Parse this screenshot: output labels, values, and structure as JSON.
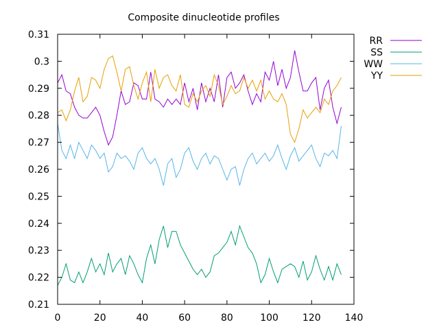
{
  "chart_data": {
    "type": "line",
    "title": "Composite dinucleotide profiles",
    "xlabel": "",
    "ylabel": "",
    "xlim": [
      0,
      140
    ],
    "ylim": [
      0.21,
      0.31
    ],
    "x_ticks": [
      "0",
      "20",
      "40",
      "60",
      "80",
      "100",
      "120",
      "140"
    ],
    "y_ticks": [
      "0.21",
      "0.22",
      "0.23",
      "0.24",
      "0.25",
      "0.26",
      "0.27",
      "0.28",
      "0.29",
      "0.3",
      "0.31"
    ],
    "grid": false,
    "legend_position": "top-right, outside plot",
    "series": [
      {
        "name": "RR",
        "color": "#9400d3",
        "points": [
          [
            0,
            0.292
          ],
          [
            2,
            0.295
          ],
          [
            4,
            0.289
          ],
          [
            6,
            0.288
          ],
          [
            8,
            0.283
          ],
          [
            10,
            0.28
          ],
          [
            12,
            0.279
          ],
          [
            14,
            0.279
          ],
          [
            16,
            0.281
          ],
          [
            18,
            0.283
          ],
          [
            20,
            0.28
          ],
          [
            22,
            0.274
          ],
          [
            24,
            0.269
          ],
          [
            26,
            0.272
          ],
          [
            28,
            0.28
          ],
          [
            30,
            0.289
          ],
          [
            32,
            0.284
          ],
          [
            34,
            0.285
          ],
          [
            36,
            0.292
          ],
          [
            38,
            0.291
          ],
          [
            40,
            0.286
          ],
          [
            42,
            0.286
          ],
          [
            44,
            0.296
          ],
          [
            46,
            0.286
          ],
          [
            48,
            0.285
          ],
          [
            50,
            0.283
          ],
          [
            52,
            0.286
          ],
          [
            54,
            0.284
          ],
          [
            56,
            0.286
          ],
          [
            58,
            0.284
          ],
          [
            60,
            0.292
          ],
          [
            62,
            0.285
          ],
          [
            64,
            0.29
          ],
          [
            66,
            0.282
          ],
          [
            68,
            0.292
          ],
          [
            70,
            0.285
          ],
          [
            72,
            0.29
          ],
          [
            74,
            0.285
          ],
          [
            76,
            0.295
          ],
          [
            78,
            0.283
          ],
          [
            80,
            0.294
          ],
          [
            82,
            0.296
          ],
          [
            84,
            0.29
          ],
          [
            86,
            0.292
          ],
          [
            88,
            0.295
          ],
          [
            90,
            0.289
          ],
          [
            92,
            0.284
          ],
          [
            94,
            0.288
          ],
          [
            96,
            0.285
          ],
          [
            98,
            0.296
          ],
          [
            100,
            0.293
          ],
          [
            102,
            0.3
          ],
          [
            104,
            0.291
          ],
          [
            106,
            0.297
          ],
          [
            108,
            0.29
          ],
          [
            110,
            0.294
          ],
          [
            112,
            0.304
          ],
          [
            114,
            0.296
          ],
          [
            116,
            0.289
          ],
          [
            118,
            0.289
          ],
          [
            120,
            0.292
          ],
          [
            122,
            0.294
          ],
          [
            124,
            0.282
          ],
          [
            126,
            0.29
          ],
          [
            128,
            0.293
          ],
          [
            130,
            0.283
          ],
          [
            132,
            0.277
          ],
          [
            134,
            0.283
          ]
        ]
      },
      {
        "name": "SS",
        "color": "#009e73",
        "points": [
          [
            0,
            0.217
          ],
          [
            2,
            0.22
          ],
          [
            4,
            0.225
          ],
          [
            6,
            0.219
          ],
          [
            8,
            0.218
          ],
          [
            10,
            0.222
          ],
          [
            12,
            0.218
          ],
          [
            14,
            0.222
          ],
          [
            16,
            0.227
          ],
          [
            18,
            0.222
          ],
          [
            20,
            0.225
          ],
          [
            22,
            0.221
          ],
          [
            24,
            0.229
          ],
          [
            26,
            0.222
          ],
          [
            28,
            0.225
          ],
          [
            30,
            0.227
          ],
          [
            32,
            0.221
          ],
          [
            34,
            0.228
          ],
          [
            36,
            0.225
          ],
          [
            38,
            0.221
          ],
          [
            40,
            0.218
          ],
          [
            42,
            0.227
          ],
          [
            44,
            0.232
          ],
          [
            46,
            0.225
          ],
          [
            48,
            0.234
          ],
          [
            50,
            0.239
          ],
          [
            52,
            0.231
          ],
          [
            54,
            0.237
          ],
          [
            56,
            0.237
          ],
          [
            58,
            0.232
          ],
          [
            60,
            0.229
          ],
          [
            62,
            0.226
          ],
          [
            64,
            0.223
          ],
          [
            66,
            0.221
          ],
          [
            68,
            0.223
          ],
          [
            70,
            0.22
          ],
          [
            72,
            0.222
          ],
          [
            74,
            0.228
          ],
          [
            76,
            0.229
          ],
          [
            78,
            0.231
          ],
          [
            80,
            0.233
          ],
          [
            82,
            0.237
          ],
          [
            84,
            0.232
          ],
          [
            86,
            0.239
          ],
          [
            88,
            0.235
          ],
          [
            90,
            0.231
          ],
          [
            92,
            0.229
          ],
          [
            94,
            0.225
          ],
          [
            96,
            0.218
          ],
          [
            98,
            0.221
          ],
          [
            100,
            0.227
          ],
          [
            102,
            0.222
          ],
          [
            104,
            0.218
          ],
          [
            106,
            0.223
          ],
          [
            108,
            0.224
          ],
          [
            110,
            0.225
          ],
          [
            112,
            0.224
          ],
          [
            114,
            0.22
          ],
          [
            116,
            0.226
          ],
          [
            118,
            0.219
          ],
          [
            120,
            0.222
          ],
          [
            122,
            0.228
          ],
          [
            124,
            0.223
          ],
          [
            126,
            0.219
          ],
          [
            128,
            0.224
          ],
          [
            130,
            0.219
          ],
          [
            132,
            0.225
          ],
          [
            134,
            0.221
          ]
        ]
      },
      {
        "name": "WW",
        "color": "#56b4e9",
        "points": [
          [
            0,
            0.277
          ],
          [
            2,
            0.267
          ],
          [
            4,
            0.264
          ],
          [
            6,
            0.269
          ],
          [
            8,
            0.264
          ],
          [
            10,
            0.27
          ],
          [
            12,
            0.267
          ],
          [
            14,
            0.264
          ],
          [
            16,
            0.269
          ],
          [
            18,
            0.267
          ],
          [
            20,
            0.264
          ],
          [
            22,
            0.266
          ],
          [
            24,
            0.259
          ],
          [
            26,
            0.261
          ],
          [
            28,
            0.266
          ],
          [
            30,
            0.264
          ],
          [
            32,
            0.265
          ],
          [
            34,
            0.263
          ],
          [
            36,
            0.26
          ],
          [
            38,
            0.266
          ],
          [
            40,
            0.268
          ],
          [
            42,
            0.264
          ],
          [
            44,
            0.262
          ],
          [
            46,
            0.264
          ],
          [
            48,
            0.26
          ],
          [
            50,
            0.254
          ],
          [
            52,
            0.262
          ],
          [
            54,
            0.264
          ],
          [
            56,
            0.257
          ],
          [
            58,
            0.26
          ],
          [
            60,
            0.266
          ],
          [
            62,
            0.268
          ],
          [
            64,
            0.263
          ],
          [
            66,
            0.26
          ],
          [
            68,
            0.264
          ],
          [
            70,
            0.266
          ],
          [
            72,
            0.262
          ],
          [
            74,
            0.265
          ],
          [
            76,
            0.264
          ],
          [
            78,
            0.26
          ],
          [
            80,
            0.256
          ],
          [
            82,
            0.26
          ],
          [
            84,
            0.261
          ],
          [
            86,
            0.254
          ],
          [
            88,
            0.26
          ],
          [
            90,
            0.264
          ],
          [
            92,
            0.266
          ],
          [
            94,
            0.262
          ],
          [
            96,
            0.264
          ],
          [
            98,
            0.266
          ],
          [
            100,
            0.263
          ],
          [
            102,
            0.265
          ],
          [
            104,
            0.269
          ],
          [
            106,
            0.264
          ],
          [
            108,
            0.26
          ],
          [
            110,
            0.265
          ],
          [
            112,
            0.268
          ],
          [
            114,
            0.263
          ],
          [
            116,
            0.265
          ],
          [
            118,
            0.267
          ],
          [
            120,
            0.269
          ],
          [
            122,
            0.264
          ],
          [
            124,
            0.261
          ],
          [
            126,
            0.266
          ],
          [
            128,
            0.265
          ],
          [
            130,
            0.267
          ],
          [
            132,
            0.264
          ],
          [
            134,
            0.276
          ]
        ]
      },
      {
        "name": "YY",
        "color": "#e69f00",
        "points": [
          [
            0,
            0.281
          ],
          [
            2,
            0.282
          ],
          [
            4,
            0.278
          ],
          [
            6,
            0.282
          ],
          [
            8,
            0.289
          ],
          [
            10,
            0.294
          ],
          [
            12,
            0.285
          ],
          [
            14,
            0.287
          ],
          [
            16,
            0.294
          ],
          [
            18,
            0.293
          ],
          [
            20,
            0.29
          ],
          [
            22,
            0.297
          ],
          [
            24,
            0.301
          ],
          [
            26,
            0.302
          ],
          [
            28,
            0.296
          ],
          [
            30,
            0.289
          ],
          [
            32,
            0.297
          ],
          [
            34,
            0.298
          ],
          [
            36,
            0.291
          ],
          [
            38,
            0.286
          ],
          [
            40,
            0.292
          ],
          [
            42,
            0.296
          ],
          [
            44,
            0.285
          ],
          [
            46,
            0.297
          ],
          [
            48,
            0.29
          ],
          [
            50,
            0.294
          ],
          [
            52,
            0.295
          ],
          [
            54,
            0.291
          ],
          [
            56,
            0.289
          ],
          [
            58,
            0.295
          ],
          [
            60,
            0.284
          ],
          [
            62,
            0.283
          ],
          [
            64,
            0.288
          ],
          [
            66,
            0.285
          ],
          [
            68,
            0.289
          ],
          [
            70,
            0.291
          ],
          [
            72,
            0.287
          ],
          [
            74,
            0.295
          ],
          [
            76,
            0.291
          ],
          [
            78,
            0.284
          ],
          [
            80,
            0.287
          ],
          [
            82,
            0.291
          ],
          [
            84,
            0.288
          ],
          [
            86,
            0.289
          ],
          [
            88,
            0.294
          ],
          [
            90,
            0.29
          ],
          [
            92,
            0.293
          ],
          [
            94,
            0.289
          ],
          [
            96,
            0.293
          ],
          [
            98,
            0.286
          ],
          [
            100,
            0.289
          ],
          [
            102,
            0.286
          ],
          [
            104,
            0.285
          ],
          [
            106,
            0.288
          ],
          [
            108,
            0.284
          ],
          [
            110,
            0.273
          ],
          [
            112,
            0.27
          ],
          [
            114,
            0.275
          ],
          [
            116,
            0.282
          ],
          [
            118,
            0.279
          ],
          [
            120,
            0.281
          ],
          [
            122,
            0.283
          ],
          [
            124,
            0.281
          ],
          [
            126,
            0.286
          ],
          [
            128,
            0.284
          ],
          [
            130,
            0.289
          ],
          [
            132,
            0.291
          ],
          [
            134,
            0.294
          ]
        ]
      }
    ]
  }
}
